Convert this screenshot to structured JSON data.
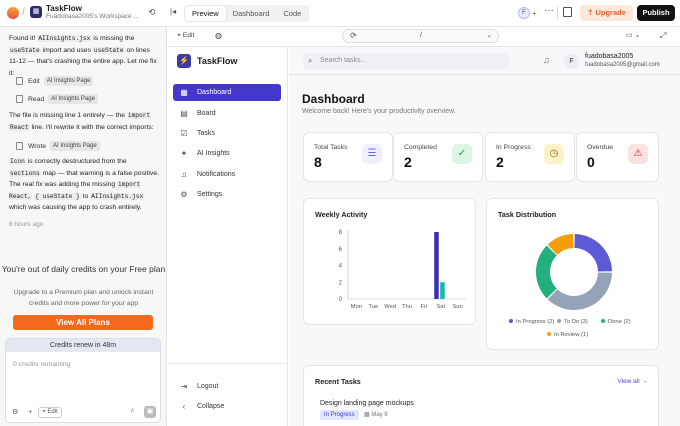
{
  "topbar": {
    "project_name": "TaskFlow",
    "project_sub": "Fuadobasa2005's Workspace ...",
    "tabs": [
      "Preview",
      "Dashboard",
      "Code"
    ],
    "avatar_letter": "F",
    "avatar_plus": "+",
    "more": "···",
    "upgrade_label": "Upgrade",
    "publish_label": "Publish"
  },
  "chat": {
    "m1_a": "Found it! ",
    "m1_code1": "AIInsights.jsx",
    "m1_b": " is missing the ",
    "m1_code2": "useState",
    "m1_c": " import and uses ",
    "m1_code3": "useState",
    "m1_d": " on lines 11-12 — that's crashing the entire app. Let me fix it:",
    "act1_label": "Edit",
    "act1_chip": "AI Insights Page",
    "act2_label": "Read",
    "act2_chip": "AI Insights Page",
    "m2_a": "The file is missing line 1 entirely — the ",
    "m2_code1": "import",
    "m2_code2": "React",
    "m2_b": " line. I'll rewrite it with the correct imports:",
    "act3_label": "Wrote",
    "act3_chip": "AI Insights Page",
    "m3_code1": "Icon",
    "m3_a": " is correctly destructured from the ",
    "m3_code2": "sections",
    "m3_b": " map — that warning is a false positive. The real fix was adding the missing ",
    "m3_code3": "import React,",
    "m3_code4": "{ useState }",
    "m3_c": " to ",
    "m3_code5": "AIInsights.jsx",
    "m3_d": " which was causing the app to crash entirely.",
    "ago": "6 hours ago",
    "out_title": "You're out of daily credits on your Free plan",
    "out_sub": "Upgrade to a Premium plan and unlock instant credits and more power for your app",
    "view_plans": "View All Plans",
    "credits_renew": "Credits renew in 48m",
    "credits_placeholder": "0 credits remaining",
    "edit_chip": "Edit"
  },
  "preview": {
    "edit_label": "Edit",
    "url_path": "/"
  },
  "app": {
    "brand": "TaskFlow",
    "nav": [
      {
        "label": "Dashboard",
        "icon": "dashboard-icon",
        "active": true
      },
      {
        "label": "Board",
        "icon": "board-icon"
      },
      {
        "label": "Tasks",
        "icon": "tasks-icon"
      },
      {
        "label": "AI Insights",
        "icon": "sparkle-icon"
      },
      {
        "label": "Notifications",
        "icon": "bell-icon"
      },
      {
        "label": "Settings",
        "icon": "gear-icon"
      }
    ],
    "logout": "Logout",
    "collapse": "Collapse",
    "search_placeholder": "Search tasks...",
    "user_letter": "F",
    "user_name": "fuadobasa2005",
    "user_email": "fuadobasa2005@gmail.com",
    "title": "Dashboard",
    "welcome": "Welcome back! Here's your productivity overview.",
    "stats": [
      {
        "label": "Total Tasks",
        "value": "8",
        "color": "#6366f1",
        "bg": "#eef0fd"
      },
      {
        "label": "Completed",
        "value": "2",
        "color": "#16a34a",
        "bg": "#dcf5e5"
      },
      {
        "label": "In Progress",
        "value": "2",
        "color": "#a16207",
        "bg": "#fdf3c8"
      },
      {
        "label": "Overdue",
        "value": "0",
        "color": "#dc2626",
        "bg": "#fde2e2"
      }
    ],
    "weekly_title": "Weekly Activity",
    "dist_title": "Task Distribution",
    "recent_title": "Recent Tasks",
    "view_all": "View all",
    "recent_task_title": "Design landing page mockups",
    "recent_task_status": "In Progress",
    "recent_task_date": "May 8"
  },
  "chart_data": [
    {
      "type": "bar",
      "title": "Weekly Activity",
      "categories": [
        "Mon",
        "Tue",
        "Wed",
        "Thu",
        "Fri",
        "Sat",
        "Sun"
      ],
      "series": [
        {
          "values": [
            0,
            0,
            0,
            0,
            0,
            8,
            0
          ],
          "color": "#3b2fb5"
        },
        {
          "values": [
            0,
            0,
            0,
            0,
            0,
            2,
            0
          ],
          "color": "#14b8a6"
        }
      ],
      "ylim": [
        0,
        8
      ],
      "yticks": [
        0,
        2,
        4,
        6,
        8
      ],
      "grid": false
    },
    {
      "type": "pie",
      "title": "Task Distribution",
      "labels": [
        "In Progress (2)",
        "To Do (3)",
        "Done (2)",
        "In Review (1)"
      ],
      "values": [
        2,
        3,
        2,
        1
      ],
      "colors": [
        "#5b5bd6",
        "#94a3b8",
        "#22b07d",
        "#f59e0b"
      ],
      "legend": "bottom"
    }
  ]
}
